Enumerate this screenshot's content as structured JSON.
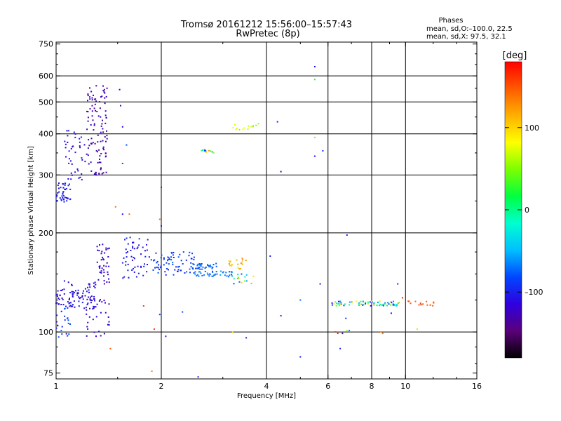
{
  "chart_data": {
    "type": "scatter",
    "title": "Tromsø 20161212 15:56:00–15:57:43",
    "subtitle": "RwPretec (8p)",
    "xlabel": "Frequency [MHz]",
    "ylabel": "Stationary phase Virtual Height [km]",
    "xscale": "log",
    "yscale": "log",
    "xlim": [
      1,
      16
    ],
    "ylim": [
      72,
      760
    ],
    "x_ticks": [
      {
        "v": 1,
        "label": "1"
      },
      {
        "v": 2,
        "label": "2"
      },
      {
        "v": 4,
        "label": "4"
      },
      {
        "v": 6,
        "label": "6"
      },
      {
        "v": 8,
        "label": "8"
      },
      {
        "v": 10,
        "label": "10"
      },
      {
        "v": 16,
        "label": "16"
      }
    ],
    "x_grid": [
      2,
      4,
      6,
      8,
      10
    ],
    "y_ticks": [
      {
        "v": 75,
        "label": "75"
      },
      {
        "v": 100,
        "label": "100"
      },
      {
        "v": 200,
        "label": "200"
      },
      {
        "v": 300,
        "label": "300"
      },
      {
        "v": 400,
        "label": "400"
      },
      {
        "v": 500,
        "label": "500"
      },
      {
        "v": 600,
        "label": "600"
      },
      {
        "v": 750,
        "label": "750"
      }
    ],
    "y_grid": [
      100,
      200,
      300,
      400,
      500,
      600
    ],
    "grid": true,
    "stats": {
      "heading": "Phases",
      "line1": "mean, sd,O:–100.0, 22.5",
      "line2": "mean, sd,X:  97.5, 32.1"
    },
    "colorbar": {
      "label": "[deg]",
      "range": [
        -180,
        180
      ],
      "ticks": [
        {
          "v": 100,
          "label": "100"
        },
        {
          "v": 0,
          "label": "0"
        },
        {
          "v": -100,
          "label": "–100"
        }
      ],
      "stops": [
        "#000000",
        "#5a007a",
        "#2f00e0",
        "#0046ff",
        "#00bfff",
        "#00ffd0",
        "#00ff40",
        "#7cff00",
        "#ffff00",
        "#ffb000",
        "#ff5a00",
        "#ff0000"
      ]
    },
    "clusters": [
      {
        "x": [
          1.0,
          1.1
        ],
        "y": [
          248,
          285
        ],
        "n": 45,
        "phase": [
          -110,
          -95
        ]
      },
      {
        "x": [
          1.05,
          1.22
        ],
        "y": [
          290,
          410
        ],
        "n": 40,
        "phase": [
          -125,
          -100
        ]
      },
      {
        "x": [
          1.22,
          1.4
        ],
        "y": [
          300,
          560
        ],
        "n": 110,
        "phase": [
          -140,
          -118
        ]
      },
      {
        "x": [
          1.0,
          1.3
        ],
        "y": [
          118,
          143
        ],
        "n": 95,
        "phase": [
          -120,
          -95
        ]
      },
      {
        "x": [
          1.0,
          1.1
        ],
        "y": [
          95,
          118
        ],
        "n": 22,
        "phase": [
          -110,
          -70
        ]
      },
      {
        "x": [
          1.3,
          1.42
        ],
        "y": [
          140,
          185
        ],
        "n": 40,
        "phase": [
          -130,
          -110
        ]
      },
      {
        "x": [
          1.22,
          1.42
        ],
        "y": [
          95,
          128
        ],
        "n": 35,
        "phase": [
          -130,
          -110
        ]
      },
      {
        "x": [
          1.55,
          1.85
        ],
        "y": [
          145,
          195
        ],
        "n": 55,
        "phase": [
          -110,
          -95
        ]
      },
      {
        "x": [
          1.85,
          2.5
        ],
        "y": [
          148,
          175
        ],
        "n": 70,
        "phase": [
          -100,
          -75
        ]
      },
      {
        "x": [
          2.4,
          2.9
        ],
        "y": [
          155,
          162
        ],
        "n": 35,
        "phase": [
          -90,
          -65
        ]
      },
      {
        "x": [
          2.5,
          3.2
        ],
        "y": [
          147,
          153
        ],
        "n": 40,
        "phase": [
          -80,
          -50
        ]
      },
      {
        "x": [
          3.1,
          3.5
        ],
        "y": [
          155,
          170
        ],
        "n": 18,
        "phase": [
          90,
          130
        ]
      },
      {
        "x": [
          3.2,
          3.7
        ],
        "y": [
          140,
          150
        ],
        "n": 15,
        "phase": [
          -100,
          120
        ]
      },
      {
        "x": [
          2.6,
          2.85
        ],
        "y": [
          350,
          360
        ],
        "n": 12,
        "phase": [
          -100,
          130
        ]
      },
      {
        "x": [
          3.2,
          3.8
        ],
        "y": [
          410,
          430
        ],
        "n": 14,
        "phase": [
          40,
          95
        ]
      },
      {
        "x": [
          6.1,
          9.6
        ],
        "y": [
          120,
          124
        ],
        "n": 75,
        "phase": [
          -110,
          130
        ]
      },
      {
        "x": [
          10.0,
          12.2
        ],
        "y": [
          120,
          124
        ],
        "n": 14,
        "phase": [
          140,
          170
        ]
      }
    ],
    "points": [
      {
        "x": 5.5,
        "y": 640,
        "phase": -110
      },
      {
        "x": 5.5,
        "y": 585,
        "phase": 20
      },
      {
        "x": 4.3,
        "y": 435,
        "phase": -100
      },
      {
        "x": 4.4,
        "y": 307,
        "phase": -120
      },
      {
        "x": 5.8,
        "y": 355,
        "phase": -90
      },
      {
        "x": 5.5,
        "y": 342,
        "phase": -110
      },
      {
        "x": 5.5,
        "y": 390,
        "phase": 110
      },
      {
        "x": 1.59,
        "y": 370,
        "phase": -80
      },
      {
        "x": 1.55,
        "y": 325,
        "phase": -80
      },
      {
        "x": 1.55,
        "y": 420,
        "phase": -110
      },
      {
        "x": 1.53,
        "y": 487,
        "phase": -130
      },
      {
        "x": 1.52,
        "y": 545,
        "phase": -130
      },
      {
        "x": 2.0,
        "y": 275,
        "phase": -90
      },
      {
        "x": 1.48,
        "y": 240,
        "phase": 140
      },
      {
        "x": 1.62,
        "y": 228,
        "phase": 140
      },
      {
        "x": 1.55,
        "y": 228,
        "phase": -110
      },
      {
        "x": 1.98,
        "y": 220,
        "phase": 140
      },
      {
        "x": 2.0,
        "y": 210,
        "phase": -100
      },
      {
        "x": 6.8,
        "y": 197,
        "phase": -100
      },
      {
        "x": 4.1,
        "y": 170,
        "phase": -100
      },
      {
        "x": 5.7,
        "y": 140,
        "phase": -100
      },
      {
        "x": 5.0,
        "y": 125,
        "phase": -70
      },
      {
        "x": 4.4,
        "y": 112,
        "phase": -90
      },
      {
        "x": 1.78,
        "y": 120,
        "phase": 160
      },
      {
        "x": 1.98,
        "y": 113,
        "phase": -80
      },
      {
        "x": 2.3,
        "y": 115,
        "phase": -80
      },
      {
        "x": 1.91,
        "y": 102,
        "phase": 160
      },
      {
        "x": 2.06,
        "y": 97,
        "phase": -100
      },
      {
        "x": 3.2,
        "y": 100,
        "phase": 100
      },
      {
        "x": 3.5,
        "y": 96,
        "phase": -100
      },
      {
        "x": 5.0,
        "y": 84,
        "phase": -100
      },
      {
        "x": 1.43,
        "y": 89,
        "phase": 150
      },
      {
        "x": 1.88,
        "y": 76,
        "phase": 130
      },
      {
        "x": 2.55,
        "y": 73,
        "phase": -100
      },
      {
        "x": 6.5,
        "y": 89,
        "phase": -100
      },
      {
        "x": 6.3,
        "y": 100,
        "phase": 160
      },
      {
        "x": 6.4,
        "y": 99,
        "phase": 170
      },
      {
        "x": 6.6,
        "y": 99,
        "phase": -110
      },
      {
        "x": 6.8,
        "y": 101,
        "phase": 60
      },
      {
        "x": 6.9,
        "y": 101,
        "phase": -70
      },
      {
        "x": 6.75,
        "y": 110,
        "phase": -90
      },
      {
        "x": 8.6,
        "y": 99,
        "phase": 140
      },
      {
        "x": 9.1,
        "y": 114,
        "phase": -120
      },
      {
        "x": 9.5,
        "y": 140,
        "phase": -90
      },
      {
        "x": 10.8,
        "y": 102,
        "phase": 60
      },
      {
        "x": 8.5,
        "y": 100,
        "phase": 130
      },
      {
        "x": 9.8,
        "y": 127,
        "phase": 170
      }
    ]
  }
}
